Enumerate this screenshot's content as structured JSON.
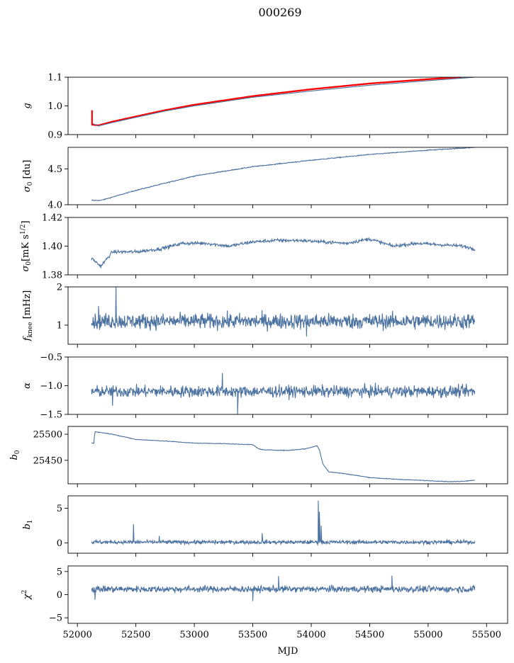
{
  "title": "000269",
  "colors": {
    "series": "#4c72a0",
    "ref": "#ff0000",
    "axis": "#000000"
  },
  "chart_data": {
    "type": "line",
    "title": "000269",
    "xlabel": "MJD",
    "xlim": [
      51920,
      55680
    ],
    "xticks": [
      52000,
      52500,
      53000,
      53500,
      54000,
      54500,
      55000,
      55500
    ],
    "x_range": [
      52120,
      55400
    ],
    "panels": [
      {
        "id": "g",
        "ylabel": "g",
        "ylim": [
          0.9,
          1.1
        ],
        "yticks": [
          "0.9",
          "1.0",
          "1.1"
        ],
        "series": [
          {
            "kind": "curve",
            "color": "ref",
            "x": [
              52120,
              52180,
              52300,
              52500,
              52750,
              53000,
              53500,
              54000,
              54500,
              55000,
              55400
            ],
            "y": [
              0.935,
              0.932,
              0.945,
              0.963,
              0.985,
              1.004,
              1.034,
              1.058,
              1.078,
              1.093,
              1.104
            ]
          },
          {
            "kind": "curve",
            "color": "series",
            "x": [
              52120,
              52180,
              52300,
              52500,
              52750,
              53000,
              53500,
              54000,
              54500,
              55000,
              55400
            ],
            "y": [
              0.94,
              0.93,
              0.942,
              0.96,
              0.982,
              1.0,
              1.03,
              1.052,
              1.072,
              1.088,
              1.1
            ]
          }
        ]
      },
      {
        "id": "sigma0-du",
        "ylabel": "σ0 [du]",
        "ylim": [
          4.0,
          4.8
        ],
        "yticks": [
          "4.0",
          "4.5"
        ],
        "series": [
          {
            "kind": "curve",
            "color": "series",
            "noise": 0.006,
            "x": [
              52130,
              52200,
              52500,
              53000,
              53500,
              54000,
              54500,
              55000,
              55400
            ],
            "y": [
              4.06,
              4.06,
              4.2,
              4.4,
              4.53,
              4.62,
              4.7,
              4.76,
              4.8
            ]
          }
        ]
      },
      {
        "id": "sigma0-mk",
        "ylabel": "σ0[mK s1/2]",
        "ylim": [
          1.38,
          1.42
        ],
        "yticks": [
          "1.38",
          "1.40",
          "1.42"
        ],
        "series": [
          {
            "kind": "curve",
            "color": "series",
            "noise": 0.0012,
            "x": [
              52130,
              52200,
              52300,
              52500,
              52700,
              52900,
              53100,
              53300,
              53500,
              53700,
              53900,
              54100,
              54300,
              54500,
              54700,
              54900,
              55100,
              55300,
              55400
            ],
            "y": [
              1.391,
              1.386,
              1.396,
              1.396,
              1.398,
              1.402,
              1.402,
              1.4,
              1.403,
              1.404,
              1.404,
              1.403,
              1.402,
              1.405,
              1.4,
              1.402,
              1.401,
              1.4,
              1.398
            ]
          }
        ]
      },
      {
        "id": "fknee",
        "ylabel": "fknee [mHz]",
        "ylim": [
          0.5,
          2.0
        ],
        "yticks": [
          "1",
          "2"
        ],
        "series": [
          {
            "kind": "noise",
            "color": "series",
            "center": 1.1,
            "amp": 0.2,
            "spikes": [
              [
                52330,
                2.0
              ],
              [
                52180,
                1.5
              ],
              [
                53960,
                0.7
              ]
            ]
          }
        ]
      },
      {
        "id": "alpha",
        "ylabel": "α",
        "ylim": [
          -1.5,
          -0.5
        ],
        "yticks": [
          "−1.5",
          "−1.0",
          "−0.5"
        ],
        "series": [
          {
            "kind": "noise",
            "color": "series",
            "center": -1.1,
            "amp": 0.1,
            "spikes": [
              [
                53240,
                -0.78
              ],
              [
                53370,
                -1.5
              ],
              [
                52300,
                -1.35
              ]
            ]
          }
        ]
      },
      {
        "id": "b0",
        "ylabel": "b0",
        "ylim": [
          25405,
          25515
        ],
        "yticks": [
          "25450",
          "25500"
        ],
        "series": [
          {
            "kind": "curve",
            "color": "series",
            "noise": 0.6,
            "x": [
              52130,
              52140,
              52150,
              52300,
              52500,
              52750,
              53000,
              53250,
              53500,
              53550,
              53600,
              53800,
              53950,
              54000,
              54050,
              54070,
              54100,
              54150,
              54300,
              54500,
              54700,
              55000,
              55200,
              55300,
              55400
            ],
            "y": [
              25483,
              25483,
              25505,
              25500,
              25490,
              25487,
              25483,
              25482,
              25480,
              25472,
              25470,
              25469,
              25472,
              25475,
              25478,
              25470,
              25443,
              25428,
              25424,
              25417,
              25414,
              25411,
              25409,
              25410,
              25412
            ]
          }
        ]
      },
      {
        "id": "b1",
        "ylabel": "b1",
        "ylim": [
          -1.5,
          6.8
        ],
        "yticks": [
          "0",
          "5"
        ],
        "series": [
          {
            "kind": "noise",
            "color": "series",
            "center": 0.1,
            "amp": 0.28,
            "spikes": [
              [
                52480,
                2.7
              ],
              [
                54060,
                6.1
              ],
              [
                54070,
                4.5
              ],
              [
                54085,
                2.5
              ],
              [
                53580,
                1.4
              ],
              [
                52700,
                1.0
              ]
            ]
          }
        ]
      },
      {
        "id": "chi2",
        "ylabel": "χ2",
        "ylim": [
          -6.2,
          6.2
        ],
        "yticks": [
          "−5",
          "0",
          "5"
        ],
        "series": [
          {
            "kind": "noise",
            "color": "series",
            "center": 1.2,
            "amp": 0.7,
            "spikes": [
              [
                53720,
                4.0
              ],
              [
                54690,
                4.1
              ],
              [
                53500,
                -1.4
              ],
              [
                52150,
                -1.1
              ]
            ]
          }
        ]
      }
    ]
  }
}
